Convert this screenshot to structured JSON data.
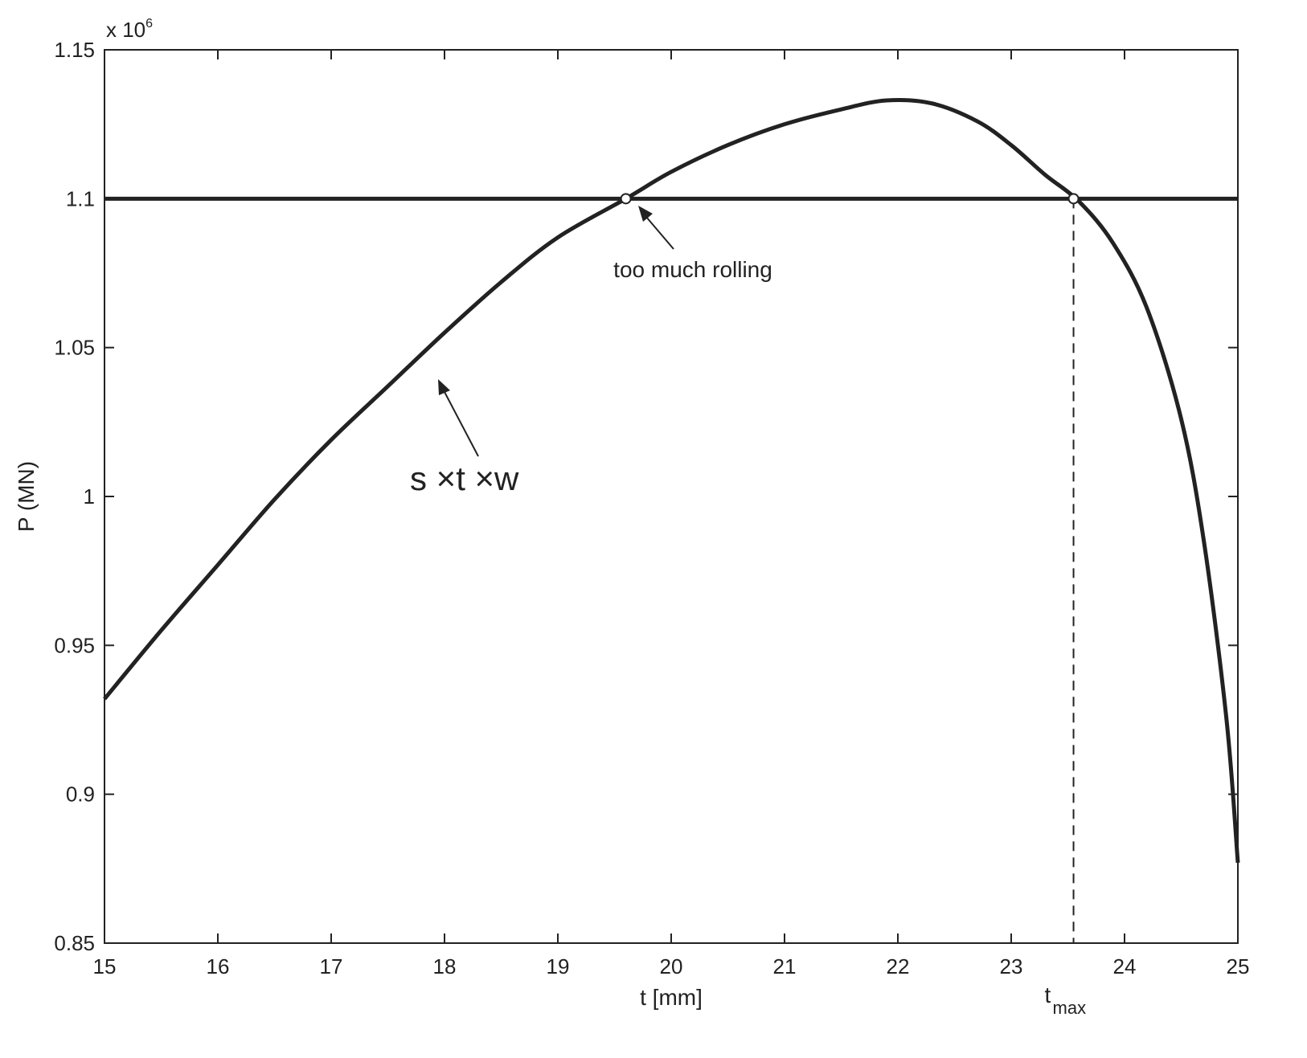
{
  "chart_data": {
    "type": "line",
    "title": "",
    "xlabel": "t [mm]",
    "ylabel": "P (MN)",
    "y_multiplier_label": "x 10",
    "y_multiplier_exp": "6",
    "xlim": [
      15,
      25
    ],
    "ylim": [
      0.85,
      1.15
    ],
    "xticks": [
      15,
      16,
      17,
      18,
      19,
      20,
      21,
      22,
      23,
      24,
      25
    ],
    "yticks": [
      0.85,
      0.9,
      0.95,
      1.0,
      1.05,
      1.1,
      1.15
    ],
    "ytick_labels": [
      "0.85",
      "0.9",
      "0.95",
      "1",
      "1.05",
      "1.1",
      "1.15"
    ],
    "grid": false,
    "series": [
      {
        "x": [
          15.0,
          15.5,
          16.0,
          16.5,
          17.0,
          17.5,
          18.0,
          18.5,
          19.0,
          19.6,
          20.0,
          20.5,
          21.0,
          21.5,
          21.9,
          22.3,
          22.7,
          23.0,
          23.3,
          23.6,
          23.9,
          24.2,
          24.5,
          24.7,
          24.9,
          25.0
        ],
        "y": [
          0.932,
          0.955,
          0.977,
          0.999,
          1.019,
          1.037,
          1.055,
          1.072,
          1.087,
          1.1,
          1.109,
          1.118,
          1.125,
          1.13,
          1.133,
          1.132,
          1.126,
          1.118,
          1.108,
          1.099,
          1.085,
          1.063,
          1.026,
          0.985,
          0.925,
          0.877
        ]
      }
    ],
    "hline": {
      "y": 1.1
    },
    "intersections": [
      {
        "x": 19.6,
        "y": 1.1
      },
      {
        "x": 23.55,
        "y": 1.1
      }
    ],
    "vline": {
      "x": 23.55,
      "style": "dashed"
    },
    "annotations": [
      {
        "text": "too much rolling",
        "target_x": 19.6,
        "target_y": 1.1
      },
      {
        "text": "s ×t ×w",
        "target_x": 17.9,
        "target_y": 1.04
      }
    ],
    "extra_xlabel": {
      "main": "t",
      "subscript": "max",
      "x": 23.55
    }
  }
}
